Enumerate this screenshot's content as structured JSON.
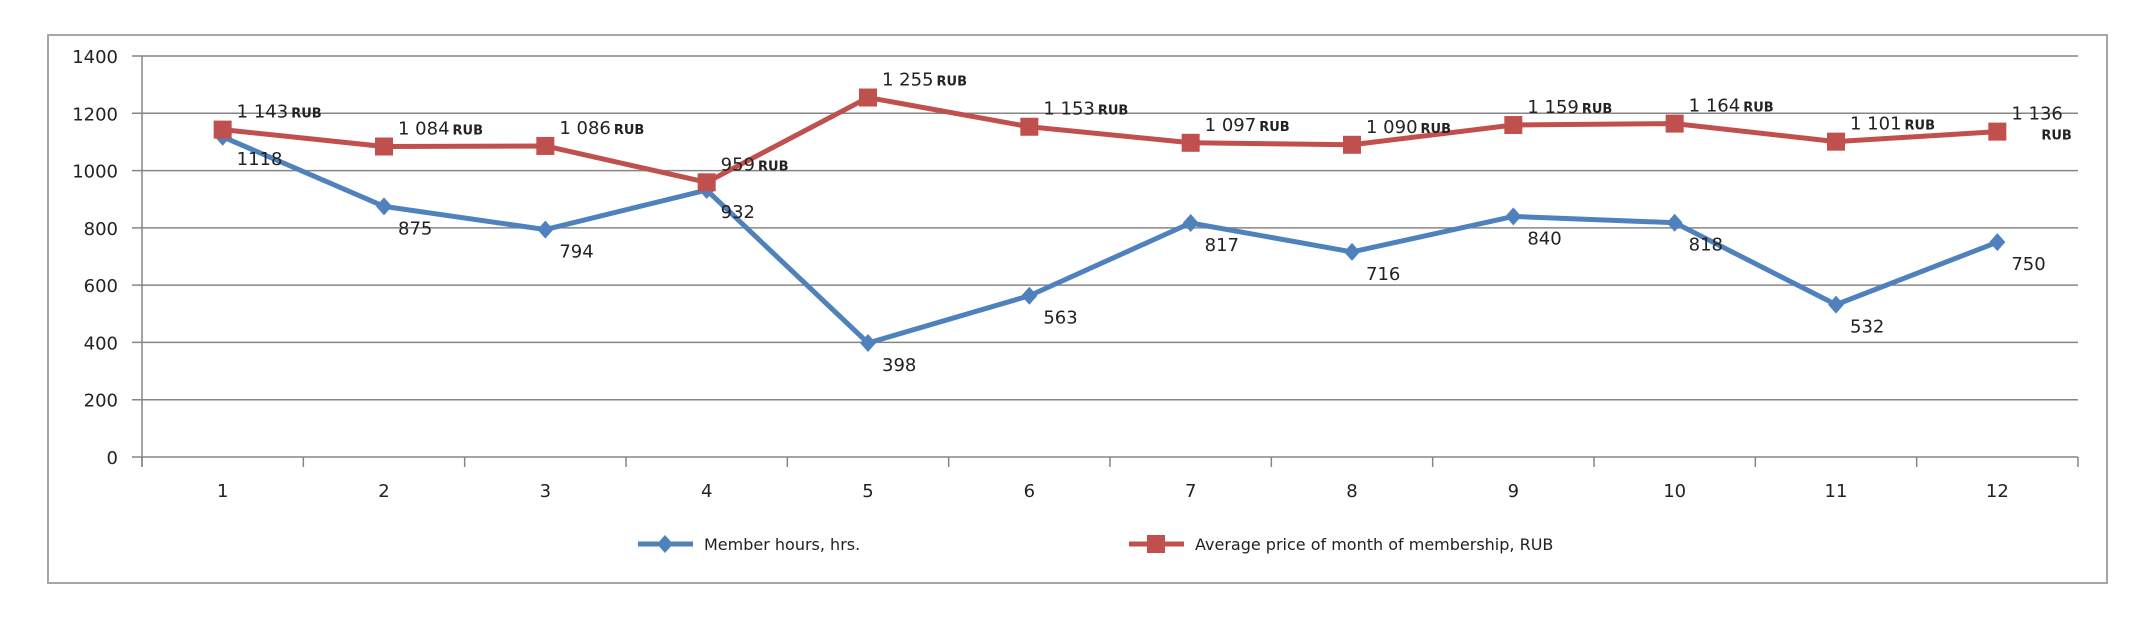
{
  "chart_data": {
    "type": "line",
    "title": "",
    "xlabel": "",
    "ylabel": "",
    "categories": [
      "1",
      "2",
      "3",
      "4",
      "5",
      "6",
      "7",
      "8",
      "9",
      "10",
      "11",
      "12"
    ],
    "ylim": [
      0,
      1400
    ],
    "yticks": [
      "0",
      "200",
      "400",
      "600",
      "800",
      "1000",
      "1200",
      "1400"
    ],
    "grid": true,
    "legend_position": "bottom",
    "series": [
      {
        "name": "Member hours, hrs.",
        "color": "#4f81bd",
        "marker": "diamond",
        "values": [
          1118,
          875,
          794,
          932,
          398,
          563,
          817,
          716,
          840,
          818,
          532,
          750
        ],
        "labels": [
          "1118",
          "875",
          "794",
          "932",
          "398",
          "563",
          "817",
          "716",
          "840",
          "818",
          "532",
          "750"
        ]
      },
      {
        "name": "Average price of month of membership, RUB",
        "color": "#c0504d",
        "marker": "square",
        "values": [
          1143,
          1084,
          1086,
          959,
          1255,
          1153,
          1097,
          1090,
          1159,
          1164,
          1101,
          1136
        ],
        "labels": [
          "1 143",
          "1 084",
          "1 086",
          "959",
          "1 255",
          "1 153",
          "1 097",
          "1 090",
          "1 159",
          "1 164",
          "1 101",
          "1 136"
        ],
        "label_unit": "RUB"
      }
    ]
  }
}
